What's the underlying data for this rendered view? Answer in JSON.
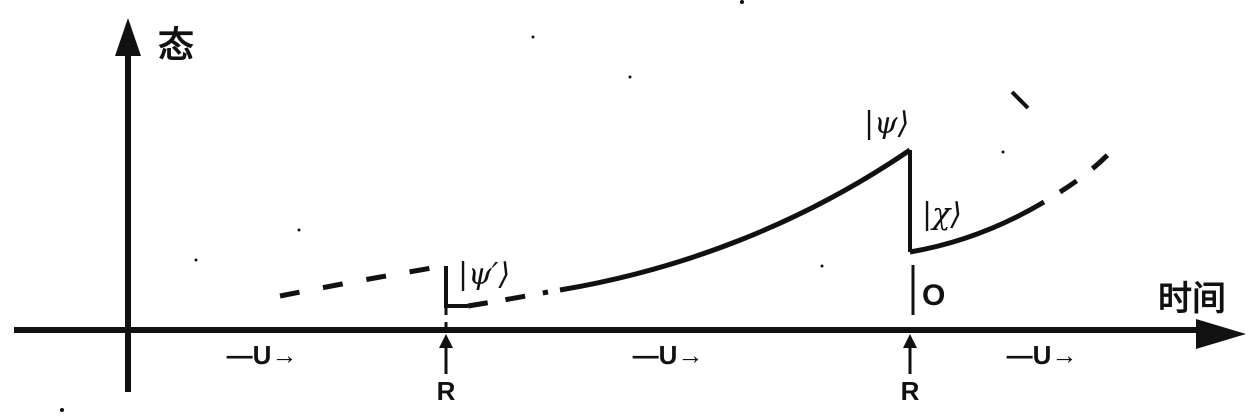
{
  "axes": {
    "y_label": "态",
    "x_label": "时间"
  },
  "state_labels": {
    "psi_prime": "|ψ′⟩",
    "psi": "|ψ⟩",
    "chi": "|χ⟩",
    "zero": "O"
  },
  "markers": {
    "reduction_1": "R",
    "reduction_2": "R"
  },
  "evolution_labels": {
    "u_1": "—U→",
    "u_2": "—U→",
    "u_3": "—U→"
  },
  "colors": {
    "ink": "#111111",
    "background": "#ffffff"
  }
}
